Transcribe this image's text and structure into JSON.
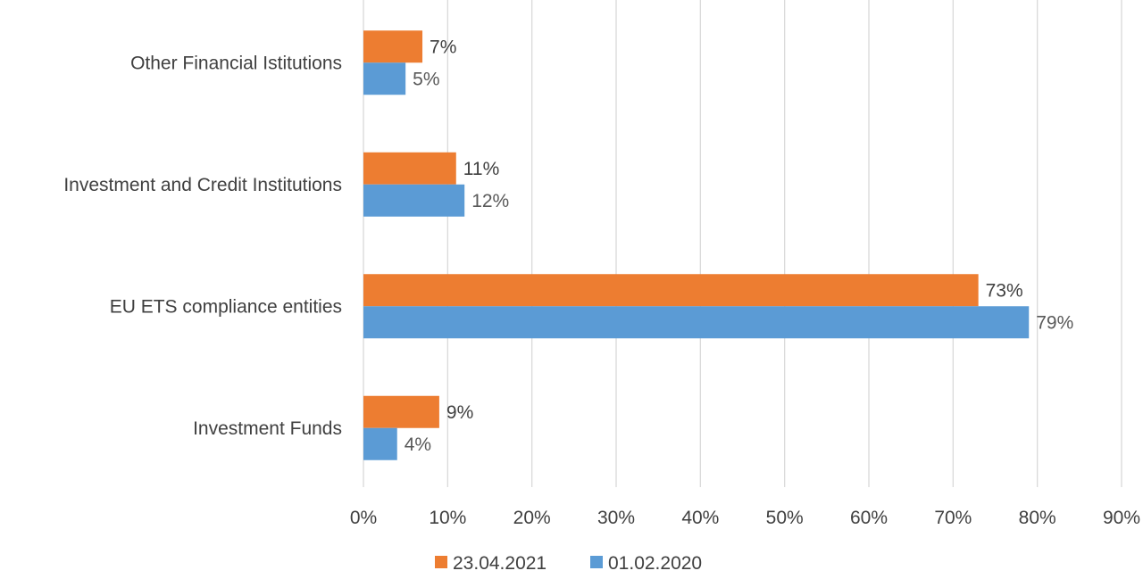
{
  "chart_data": {
    "type": "bar",
    "orientation": "horizontal",
    "categories": [
      "Other Financial Istitutions",
      "Investment and Credit Institutions",
      "EU ETS compliance entities",
      "Investment Funds"
    ],
    "series": [
      {
        "name": "23.04.2021",
        "values": [
          7,
          11,
          73,
          9
        ],
        "labels": [
          "7%",
          "11%",
          "73%",
          "9%"
        ],
        "color": "#ED7D31",
        "label_color": "#404040"
      },
      {
        "name": "01.02.2020",
        "values": [
          5,
          12,
          79,
          4
        ],
        "labels": [
          "5%",
          "12%",
          "79%",
          "4%"
        ],
        "color": "#5B9BD5",
        "label_color": "#595959"
      }
    ],
    "xlim": [
      0,
      90
    ],
    "xticks": [
      0,
      10,
      20,
      30,
      40,
      50,
      60,
      70,
      80,
      90
    ],
    "xtick_labels": [
      "0%",
      "10%",
      "20%",
      "30%",
      "40%",
      "50%",
      "60%",
      "70%",
      "80%",
      "90%"
    ],
    "grid": true,
    "gridline_color": "#D9D9D9",
    "legend_position": "bottom",
    "title": "",
    "xlabel": "",
    "ylabel": ""
  }
}
